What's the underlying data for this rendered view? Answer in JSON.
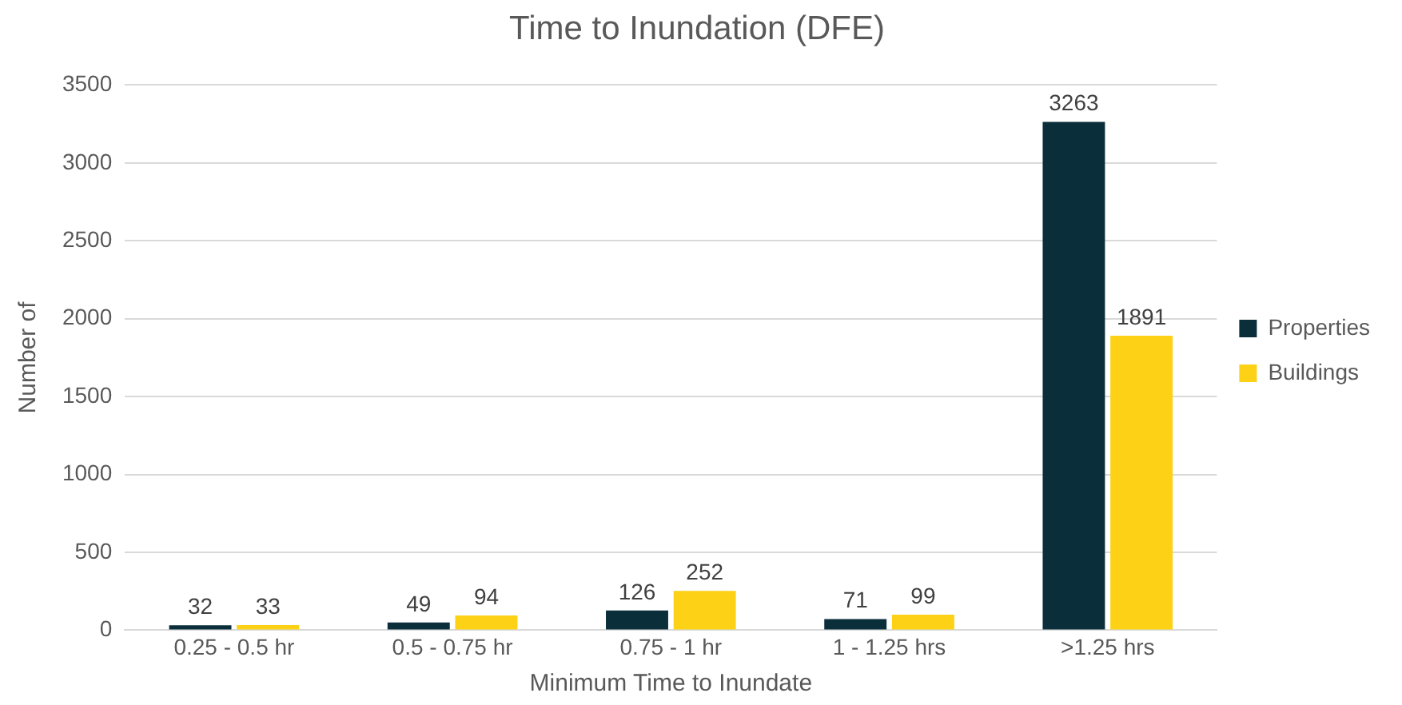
{
  "chart_data": {
    "type": "bar",
    "title": "Time to Inundation (DFE)",
    "xlabel": "Minimum Time to Inundate",
    "ylabel": "Number of",
    "categories": [
      "0.25 - 0.5 hr",
      "0.5 - 0.75 hr",
      "0.75 - 1 hr",
      "1 - 1.25 hrs",
      ">1.25 hrs"
    ],
    "series": [
      {
        "name": "Properties",
        "color": "#0b2f3a",
        "values": [
          32,
          49,
          126,
          71,
          3263
        ]
      },
      {
        "name": "Buildings",
        "color": "#fcd116",
        "values": [
          33,
          94,
          252,
          99,
          1891
        ]
      }
    ],
    "ylim": [
      0,
      3500
    ],
    "yticks": [
      0,
      500,
      1000,
      1500,
      2000,
      2500,
      3000,
      3500
    ],
    "grid": "y",
    "legend": "right",
    "data_labels": true
  }
}
